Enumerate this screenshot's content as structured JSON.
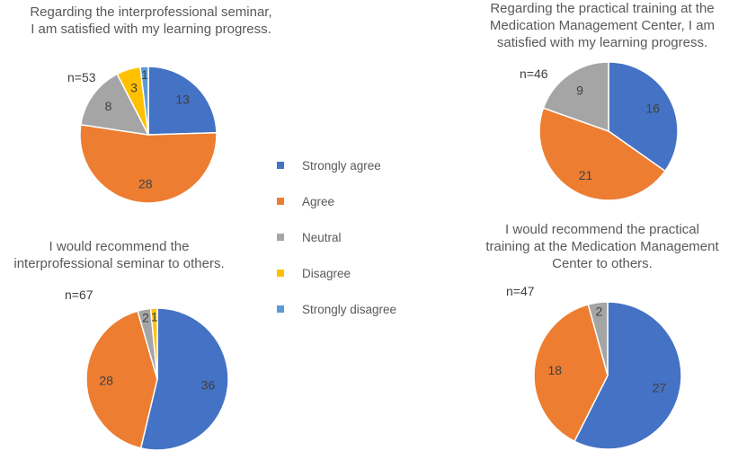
{
  "legend": {
    "items": [
      {
        "label": "Strongly agree",
        "color": "#4472C4"
      },
      {
        "label": "Agree",
        "color": "#ED7D31"
      },
      {
        "label": "Neutral",
        "color": "#A5A5A5"
      },
      {
        "label": "Disagree",
        "color": "#FFC000"
      },
      {
        "label": "Strongly disagree",
        "color": "#5B9BD5"
      }
    ]
  },
  "chart_data": [
    {
      "type": "pie",
      "title": "Regarding the interprofessional seminar,\nI am satisfied with my learning progress.",
      "n_label": "n=53",
      "categories": [
        "Strongly agree",
        "Agree",
        "Neutral",
        "Disagree",
        "Strongly disagree"
      ],
      "values": [
        13,
        28,
        8,
        3,
        1
      ]
    },
    {
      "type": "pie",
      "title": "Regarding the practical training at the\nMedication Management Center, I am\nsatisfied with my learning progress.",
      "n_label": "n=46",
      "categories": [
        "Strongly agree",
        "Agree",
        "Neutral"
      ],
      "values": [
        16,
        21,
        9
      ]
    },
    {
      "type": "pie",
      "title": "I would recommend the\ninterprofessional seminar to others.",
      "n_label": "n=67",
      "categories": [
        "Strongly agree",
        "Agree",
        "Neutral",
        "Disagree"
      ],
      "values": [
        36,
        28,
        2,
        1
      ]
    },
    {
      "type": "pie",
      "title": "I would recommend the practical\ntraining at the Medication Management\nCenter to others.",
      "n_label": "n=47",
      "categories": [
        "Strongly agree",
        "Agree",
        "Neutral"
      ],
      "values": [
        27,
        18,
        2
      ]
    }
  ]
}
